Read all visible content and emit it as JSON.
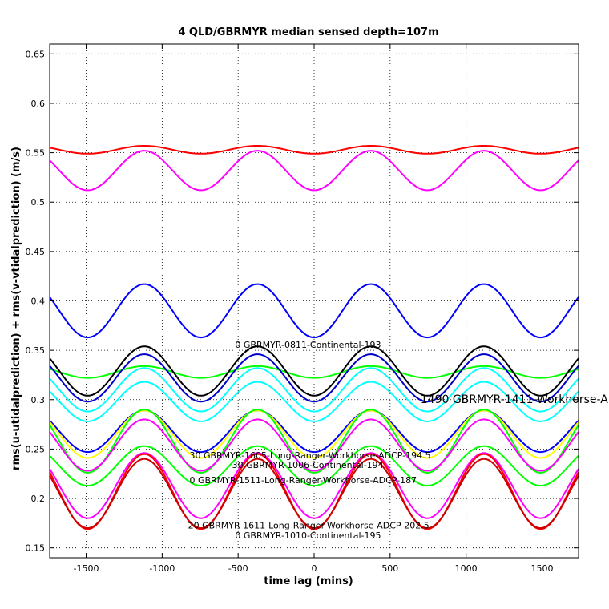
{
  "chart_data": {
    "type": "line",
    "title": "4 QLD/GBRMYR median sensed depth=107m",
    "xlabel": "time lag (mins)",
    "ylabel": "rms(u-utidalprediction) + rms(v-vtidalprediction) (m/s)",
    "xlim": [
      -1740,
      1740
    ],
    "ylim": [
      0.14,
      0.66
    ],
    "xticks": [
      -1500,
      -1000,
      -500,
      0,
      500,
      1000,
      1500
    ],
    "yticks": [
      0.15,
      0.2,
      0.25,
      0.3,
      0.35,
      0.4,
      0.45,
      0.5,
      0.55,
      0.6,
      0.65
    ],
    "grid": true,
    "period_mins": 745,
    "series": [
      {
        "color": "#ff0000",
        "base": 0.553,
        "amp": 0.004,
        "min_lag": 0
      },
      {
        "color": "#ff00ff",
        "base": 0.532,
        "amp": 0.02,
        "min_lag": 0
      },
      {
        "color": "#0000ff",
        "base": 0.39,
        "amp": 0.027,
        "min_lag": -1490
      },
      {
        "color": "#00ff00",
        "base": 0.328,
        "amp": 0.006,
        "min_lag": -1490
      },
      {
        "color": "#000000",
        "base": 0.329,
        "amp": 0.025,
        "min_lag": 0
      },
      {
        "color": "#0000cc",
        "base": 0.322,
        "amp": 0.024,
        "min_lag": 0
      },
      {
        "color": "#00ffff",
        "base": 0.31,
        "amp": 0.022,
        "min_lag": 0
      },
      {
        "color": "#00ffff",
        "base": 0.298,
        "amp": 0.02,
        "min_lag": 0
      },
      {
        "color": "#0000ff",
        "base": 0.268,
        "amp": 0.021,
        "min_lag": 0
      },
      {
        "color": "#ffff00",
        "base": 0.265,
        "amp": 0.024,
        "min_lag": 0
      },
      {
        "color": "#00ff00",
        "base": 0.258,
        "amp": 0.032,
        "min_lag": 0
      },
      {
        "color": "#ff00ff",
        "base": 0.254,
        "amp": 0.026,
        "min_lag": 0
      },
      {
        "color": "#00ff00",
        "base": 0.233,
        "amp": 0.02,
        "min_lag": 0
      },
      {
        "color": "#ff00ff",
        "base": 0.213,
        "amp": 0.033,
        "min_lag": 0
      },
      {
        "color": "#ff0000",
        "base": 0.207,
        "amp": 0.038,
        "min_lag": 0
      },
      {
        "color": "#cc0000",
        "base": 0.205,
        "amp": 0.035,
        "min_lag": 0
      }
    ],
    "annotations": [
      {
        "text": "0 GBRMYR-0811-Continental-193",
        "x": -520,
        "y": 0.3525,
        "size": "small"
      },
      {
        "text": "1490 GBRMYR-1411-Workhorse-A",
        "x": 700,
        "y": 0.2965,
        "size": "large"
      },
      {
        "text": "30 GBRMYR-1605-Long-Ranger-Workhorse-ADCP-194.5",
        "x": -820,
        "y": 0.2405,
        "size": "small"
      },
      {
        "text": "30 GBRMYR-1006-Continental-194",
        "x": -540,
        "y": 0.231,
        "size": "small"
      },
      {
        "text": "0 GBRMYR-1511-Long-Ranger-Workhorse-ADCP-187",
        "x": -820,
        "y": 0.2155,
        "size": "small"
      },
      {
        "text": "20 GBRMYR-1611-Long-Ranger-Workhorse-ADCP-202.5",
        "x": -830,
        "y": 0.1695,
        "size": "small"
      },
      {
        "text": "0 GBRMYR-1010-Continental-195",
        "x": -520,
        "y": 0.1595,
        "size": "small"
      }
    ]
  }
}
